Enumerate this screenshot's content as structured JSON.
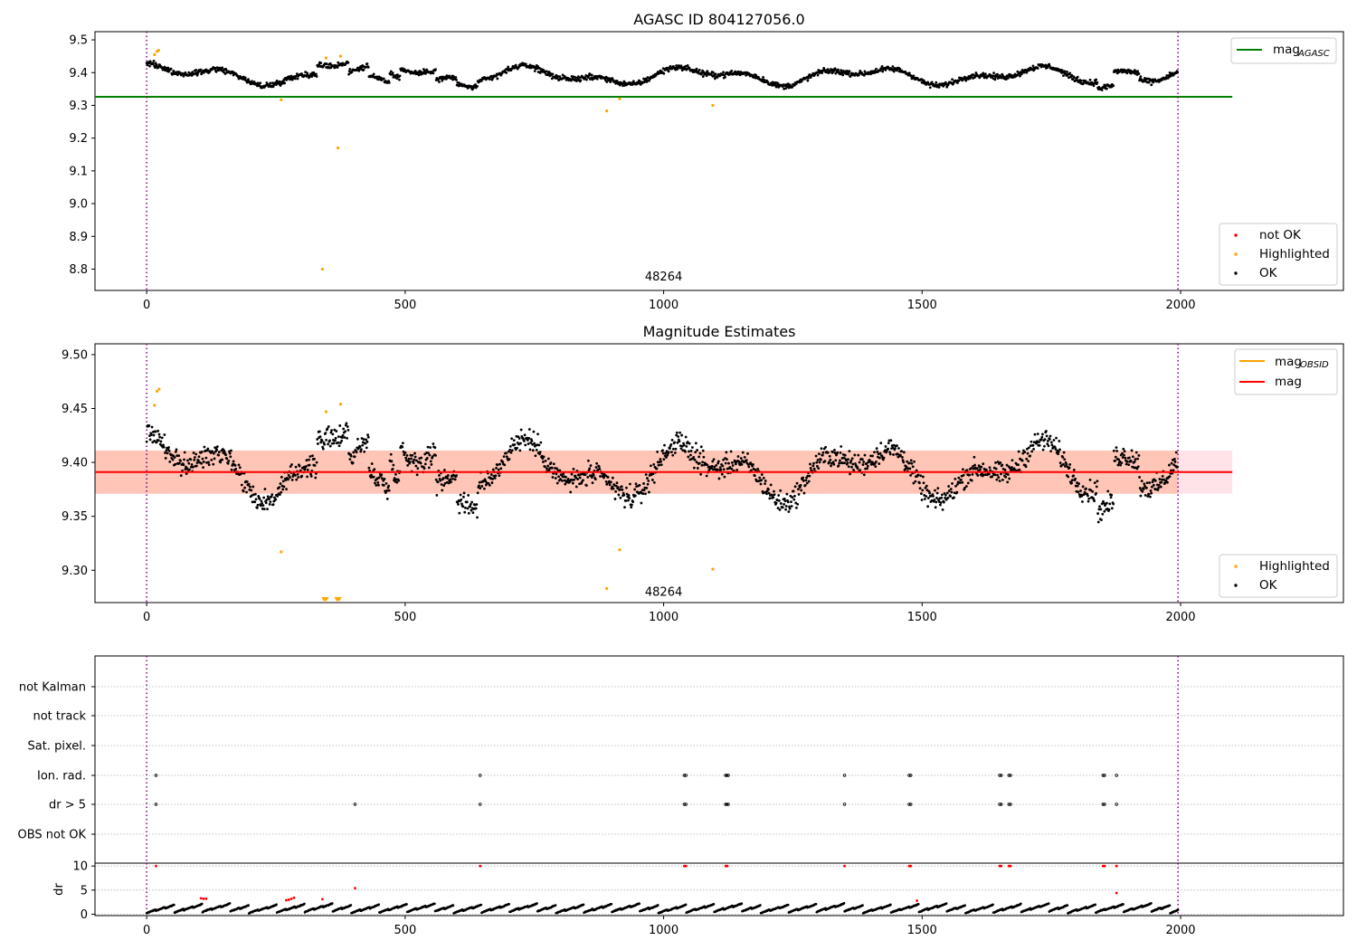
{
  "chart_data": [
    {
      "type": "scatter",
      "title": "AGASC ID 804127056.0",
      "xlim": [
        -100,
        2315
      ],
      "ylim": [
        8.735,
        9.525
      ],
      "x_ticks": [
        0,
        500,
        1000,
        1500,
        2000
      ],
      "x_tick_labels": [
        "0",
        "500",
        "1000",
        "1500",
        "2000"
      ],
      "y_ticks": [
        8.8,
        8.9,
        9.0,
        9.1,
        9.2,
        9.3,
        9.4,
        9.5
      ],
      "y_tick_labels": [
        "8.8",
        "8.9",
        "9.0",
        "9.1",
        "9.2",
        "9.3",
        "9.4",
        "9.5"
      ],
      "vertical_markers": [
        0,
        1995
      ],
      "reference_lines": [
        {
          "name": "mag_AGASC",
          "value": 9.326,
          "x_range": [
            -100,
            2100
          ],
          "color": "#008000"
        }
      ],
      "annotation": {
        "text": "48264",
        "x": 1000,
        "y": 8.755
      },
      "legend_top": {
        "position": "top-right",
        "entries": [
          {
            "label": "mag",
            "subscript": "AGASC",
            "color": "#008000"
          }
        ]
      },
      "legend_bottom": {
        "position": "bottom-right",
        "entries": [
          {
            "label": "not OK",
            "color": "#ff0000"
          },
          {
            "label": "Highlighted",
            "color": "#ffa500"
          },
          {
            "label": "OK",
            "color": "#000000"
          }
        ]
      },
      "series": [
        {
          "name": "OK",
          "color": "#000000",
          "kind": "dense",
          "x_range": [
            0,
            1995
          ],
          "center": 9.395,
          "mode": "agasc"
        },
        {
          "name": "Highlighted",
          "color": "#ffa500",
          "points": [
            [
              15,
              9.455
            ],
            [
              20,
              9.465
            ],
            [
              23,
              9.468
            ],
            [
              260,
              9.317
            ],
            [
              340,
              8.8
            ],
            [
              347,
              9.445
            ],
            [
              370,
              9.17
            ],
            [
              375,
              9.45
            ],
            [
              890,
              9.283
            ],
            [
              915,
              9.32
            ],
            [
              1095,
              9.3
            ]
          ]
        }
      ]
    },
    {
      "type": "scatter",
      "title": "Magnitude Estimates",
      "xlim": [
        -100,
        2315
      ],
      "ylim": [
        9.27,
        9.51
      ],
      "x_ticks": [
        0,
        500,
        1000,
        1500,
        2000
      ],
      "x_tick_labels": [
        "0",
        "500",
        "1000",
        "1500",
        "2000"
      ],
      "y_ticks": [
        9.3,
        9.35,
        9.4,
        9.45,
        9.5
      ],
      "y_tick_labels": [
        "9.30",
        "9.35",
        "9.40",
        "9.45",
        "9.50"
      ],
      "vertical_markers": [
        0,
        1995
      ],
      "reference_lines": [
        {
          "name": "mag",
          "value": 9.391,
          "x_range": [
            -100,
            2100
          ],
          "color": "#ff0000"
        }
      ],
      "bands": [
        {
          "y_range": [
            9.371,
            9.411
          ],
          "x_range": [
            -100,
            2100
          ],
          "color": "#ffc0cb",
          "opacity": 0.45
        },
        {
          "y_range": [
            9.371,
            9.411
          ],
          "x_range": [
            -100,
            1995
          ],
          "color": "#ffa07a",
          "opacity": 0.45
        }
      ],
      "annotation": {
        "text": "48264",
        "x": 1000,
        "y": 9.277
      },
      "legend_top": {
        "position": "top-right",
        "entries": [
          {
            "label": "mag",
            "subscript": "OBSID",
            "color": "#ffa500"
          },
          {
            "label": "mag",
            "color": "#ff0000"
          }
        ]
      },
      "legend_bottom": {
        "position": "bottom-right",
        "entries": [
          {
            "label": "Highlighted",
            "color": "#ffa500"
          },
          {
            "label": "OK",
            "color": "#000000"
          }
        ]
      },
      "series": [
        {
          "name": "OK",
          "color": "#000000",
          "kind": "dense",
          "x_range": [
            0,
            1995
          ],
          "center": 9.39,
          "mode": "obsid"
        },
        {
          "name": "Highlighted",
          "color": "#ffa500",
          "points": [
            [
              15,
              9.453
            ],
            [
              20,
              9.466
            ],
            [
              24,
              9.468
            ],
            [
              260,
              9.317
            ],
            [
              347,
              9.447
            ],
            [
              375,
              9.454
            ],
            [
              890,
              9.283
            ],
            [
              915,
              9.319
            ],
            [
              1095,
              9.301
            ]
          ],
          "clipped_below": [
            343,
            347,
            368,
            372
          ]
        }
      ]
    },
    {
      "type": "scatter",
      "title": "",
      "xlim": [
        -100,
        2315
      ],
      "categories": [
        "not Kalman",
        "not track",
        "Sat. pixel.",
        "Ion. rad.",
        "dr > 5",
        "OBS not OK"
      ],
      "vertical_markers": [
        0,
        1995
      ],
      "flags": {
        "Ion. rad.": [
          18,
          645,
          1040,
          1043,
          1120,
          1122,
          1125,
          1350,
          1475,
          1478,
          1650,
          1653,
          1668,
          1671,
          1850,
          1853,
          1876
        ],
        "dr > 5": [
          18,
          403,
          645,
          1040,
          1043,
          1120,
          1122,
          1125,
          1350,
          1475,
          1478,
          1650,
          1653,
          1668,
          1671,
          1850,
          1853,
          1876
        ]
      }
    },
    {
      "type": "scatter",
      "title": "",
      "ylabel": "dr",
      "xlim": [
        -100,
        2315
      ],
      "ylim": [
        -0.3,
        10.6
      ],
      "x_ticks": [
        0,
        500,
        1000,
        1500,
        2000
      ],
      "x_tick_labels": [
        "0",
        "500",
        "1000",
        "1500",
        "2000"
      ],
      "y_ticks": [
        0,
        5,
        10
      ],
      "y_tick_labels": [
        "0",
        "5",
        "10"
      ],
      "vertical_markers": [
        0,
        1995
      ],
      "series": [
        {
          "name": "dr",
          "color": "#000000",
          "kind": "dense",
          "x_range": [
            0,
            1995
          ],
          "mode": "dr"
        },
        {
          "name": "dr flagged",
          "color": "#ff0000",
          "points": [
            [
              18,
              10
            ],
            [
              645,
              10
            ],
            [
              1040,
              10
            ],
            [
              1043,
              10
            ],
            [
              1120,
              10
            ],
            [
              1123,
              10
            ],
            [
              1350,
              10
            ],
            [
              1475,
              10
            ],
            [
              1478,
              10
            ],
            [
              1650,
              10
            ],
            [
              1653,
              10
            ],
            [
              1668,
              10
            ],
            [
              1671,
              10
            ],
            [
              1850,
              10
            ],
            [
              1853,
              10
            ],
            [
              1876,
              10
            ],
            [
              105,
              3.3
            ],
            [
              110,
              3.2
            ],
            [
              115,
              3.2
            ],
            [
              270,
              2.9
            ],
            [
              275,
              3.0
            ],
            [
              280,
              3.2
            ],
            [
              285,
              3.4
            ],
            [
              340,
              3.1
            ],
            [
              403,
              5.4
            ],
            [
              1490,
              2.8
            ],
            [
              1876,
              4.4
            ]
          ]
        }
      ]
    }
  ]
}
